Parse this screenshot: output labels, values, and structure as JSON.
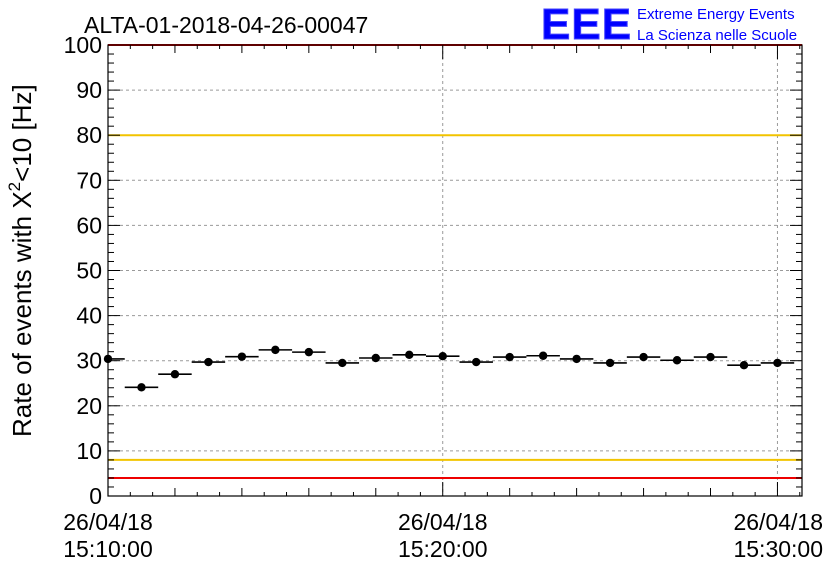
{
  "chart_data": {
    "type": "scatter",
    "title": "ALTA-01-2018-04-26-00047",
    "ylabel": {
      "prefix": "Rate of events with ",
      "symbol": "X",
      "superscript": "2",
      "suffix": "<10 [Hz]"
    },
    "ylim": [
      0,
      100
    ],
    "y_ticks": [
      0,
      10,
      20,
      30,
      40,
      50,
      60,
      70,
      80,
      90,
      100
    ],
    "x_range_min": [
      0,
      31.1
    ],
    "x_ticks": [
      {
        "at": 0,
        "date": "26/04/18",
        "time": "15:10:00"
      },
      {
        "at": 15,
        "date": "26/04/18",
        "time": "15:20:00"
      },
      {
        "at": 30,
        "date": "26/04/18",
        "time": "15:30:00"
      }
    ],
    "grid": true,
    "reference_lines": [
      {
        "y": 100,
        "color": "#ee0000"
      },
      {
        "y": 80,
        "color": "#f2c400"
      },
      {
        "y": 8,
        "color": "#f2c400"
      },
      {
        "y": 4,
        "color": "#ee0000"
      }
    ],
    "series": [
      {
        "color": "#000000",
        "bin_width_min": 1.5,
        "x_start_min": -0.75,
        "values": [
          30.4,
          24.1,
          27.0,
          29.7,
          30.9,
          32.4,
          31.9,
          29.5,
          30.6,
          31.3,
          31.0,
          29.7,
          30.8,
          31.1,
          30.4,
          29.5,
          30.8,
          30.1,
          30.8,
          29.0,
          29.5
        ]
      }
    ]
  },
  "logo": {
    "mark": "EEE",
    "line1": "Extreme Energy Events",
    "line2": "La Scienza nelle Scuole",
    "color": "#0000ff"
  }
}
